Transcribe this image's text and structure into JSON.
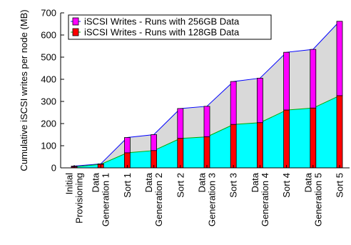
{
  "chart_data": {
    "type": "bar",
    "ylabel": "Cumulative iSCSI writes per node (MB)",
    "ylim": [
      0,
      700
    ],
    "yticks": [
      0,
      100,
      200,
      300,
      400,
      500,
      600,
      700
    ],
    "legend_position": "top-left",
    "categories": [
      [
        "Initial",
        "Provisioning"
      ],
      [
        "Data",
        "Generation 1"
      ],
      [
        "Sort 1"
      ],
      [
        "Data",
        "Generation 2"
      ],
      [
        "Sort 2"
      ],
      [
        "Data",
        "Generation 3"
      ],
      [
        "Sort 3"
      ],
      [
        "Data",
        "Generation 4"
      ],
      [
        "Sort 4"
      ],
      [
        "Data",
        "Generation 5"
      ],
      [
        "Sort 5"
      ]
    ],
    "series": [
      {
        "name": "iSCSI Writes - Runs with 256GB Data",
        "color": "#ff00ff",
        "line_color": "#0000ff",
        "fill_color": "#d9d9d9",
        "values": [
          8,
          18,
          137,
          150,
          268,
          278,
          390,
          405,
          522,
          535,
          662
        ]
      },
      {
        "name": "iSCSI Writes - Runs with 128GB Data",
        "color": "#ff0000",
        "line_color": "#00aa00",
        "fill_color": "#00ffff",
        "values": [
          4,
          16,
          68,
          78,
          133,
          140,
          196,
          204,
          261,
          270,
          326
        ]
      }
    ],
    "grid": false
  }
}
